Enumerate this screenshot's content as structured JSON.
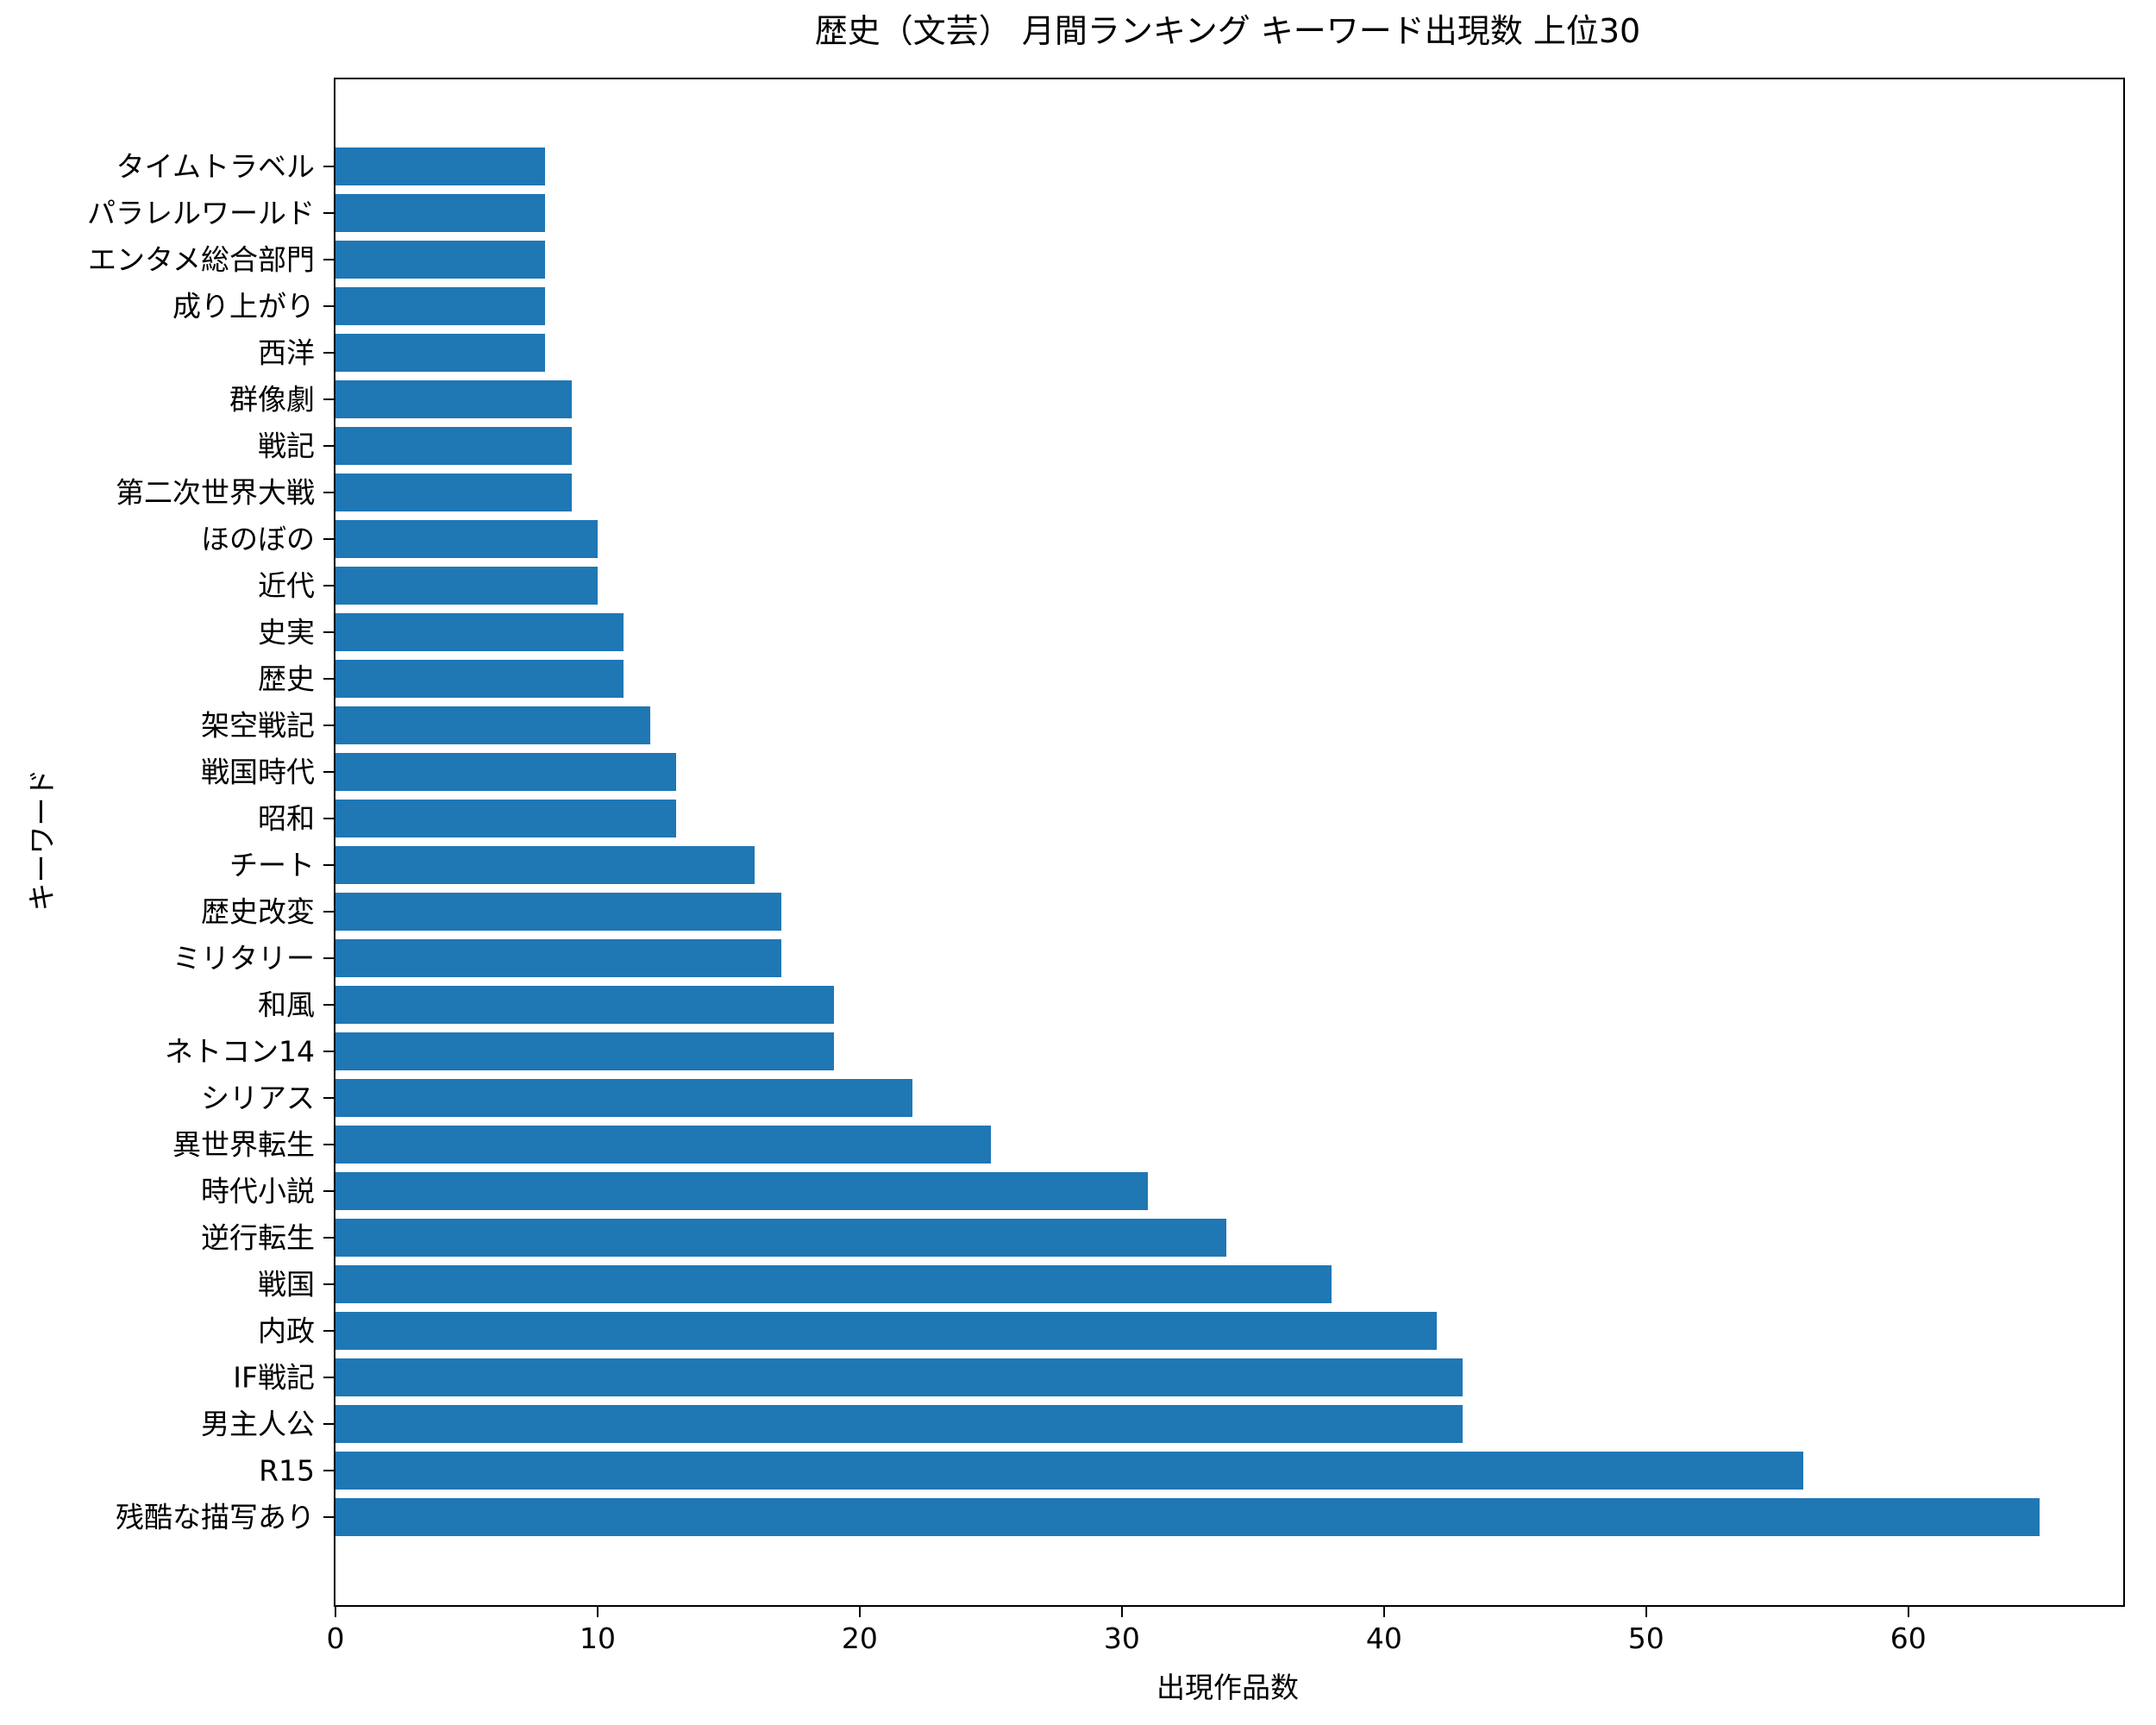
{
  "chart_data": {
    "type": "bar",
    "orientation": "horizontal",
    "title": "歴史（文芸） 月間ランキング キーワード出現数 上位30",
    "xlabel": "出現作品数",
    "ylabel": "キーワード",
    "categories_top_to_bottom": [
      "タイムトラベル",
      "パラレルワールド",
      "エンタメ総合部門",
      "成り上がり",
      "西洋",
      "群像劇",
      "戦記",
      "第二次世界大戦",
      "ほのぼの",
      "近代",
      "史実",
      "歴史",
      "架空戦記",
      "戦国時代",
      "昭和",
      "チート",
      "歴史改変",
      "ミリタリー",
      "和風",
      "ネトコン14",
      "シリアス",
      "異世界転生",
      "時代小説",
      "逆行転生",
      "戦国",
      "内政",
      "IF戦記",
      "男主人公",
      "R15",
      "残酷な描写あり"
    ],
    "values": [
      8,
      8,
      8,
      8,
      8,
      9,
      9,
      9,
      10,
      10,
      11,
      11,
      12,
      13,
      13,
      16,
      17,
      17,
      19,
      19,
      22,
      25,
      31,
      34,
      38,
      42,
      43,
      43,
      56,
      65
    ],
    "xlim": [
      0,
      68.2
    ],
    "xticks": [
      0,
      10,
      20,
      30,
      40,
      50,
      60
    ],
    "bar_color": "#1f77b4",
    "spine_color": "#000000",
    "background": "#ffffff",
    "grid": false,
    "legend": null
  }
}
